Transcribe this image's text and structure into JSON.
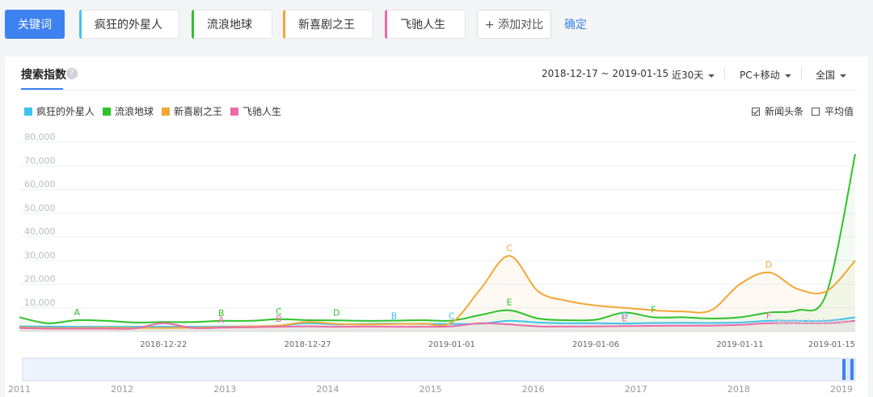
{
  "keywords": {
    "main_label": "关键词",
    "chips": [
      {
        "label": "疯狂的外星人",
        "color": "#3ec3f0"
      },
      {
        "label": "流浪地球",
        "color": "#2fc22b"
      },
      {
        "label": "新喜剧之王",
        "color": "#f3a736"
      },
      {
        "label": "飞驰人生",
        "color": "#ec6aa6"
      }
    ],
    "add_label": "+ 添加对比",
    "confirm_label": "确定"
  },
  "panel": {
    "tab_title": "搜索指数",
    "help_icon": "?",
    "date_range": "2018-12-17 ~ 2019-01-15",
    "period": "近30天",
    "device": "PC+移动",
    "region": "全国",
    "option_news": "新闻头条",
    "option_avg": "平均值",
    "watermark": "@index.baidu.com"
  },
  "chart_data": {
    "type": "line",
    "x": [
      "2018-12-17",
      "2018-12-18",
      "2018-12-19",
      "2018-12-20",
      "2018-12-21",
      "2018-12-22",
      "2018-12-23",
      "2018-12-24",
      "2018-12-25",
      "2018-12-26",
      "2018-12-27",
      "2018-12-28",
      "2018-12-29",
      "2018-12-30",
      "2018-12-31",
      "2019-01-01",
      "2019-01-02",
      "2019-01-03",
      "2019-01-04",
      "2019-01-05",
      "2019-01-06",
      "2019-01-07",
      "2019-01-08",
      "2019-01-09",
      "2019-01-10",
      "2019-01-11",
      "2019-01-12",
      "2019-01-13",
      "2019-01-14",
      "2019-01-15"
    ],
    "x_tick_labels": [
      "2018-12-22",
      "2018-12-27",
      "2019-01-01",
      "2019-01-06",
      "2019-01-11",
      "2019-01-15"
    ],
    "y_tick_labels": [
      "10,000",
      "20,000",
      "30,000",
      "40,000",
      "50,000",
      "60,000",
      "70,000",
      "80,000"
    ],
    "ylim": [
      0,
      80000
    ],
    "series": [
      {
        "name": "疯狂的外星人",
        "color": "#3ec3f0",
        "values": [
          2200,
          2100,
          2000,
          2000,
          2000,
          2000,
          2000,
          2100,
          2200,
          2500,
          3500,
          3000,
          3200,
          3300,
          3200,
          3200,
          3300,
          4500,
          3800,
          3500,
          3500,
          3400,
          3600,
          3700,
          3600,
          3800,
          4500,
          4500,
          4500,
          6000
        ]
      },
      {
        "name": "流浪地球",
        "color": "#2fc22b",
        "values": [
          6000,
          3500,
          4800,
          4500,
          3800,
          4000,
          4000,
          4500,
          4500,
          5200,
          4800,
          4700,
          4500,
          4600,
          4800,
          4600,
          7000,
          9000,
          5500,
          4800,
          5000,
          8000,
          6000,
          6000,
          5500,
          6000,
          8000,
          9000,
          16000,
          75000
        ]
      },
      {
        "name": "新喜剧之王",
        "color": "#f3a736",
        "values": [
          1800,
          1500,
          1500,
          1600,
          1500,
          1500,
          1600,
          1800,
          2200,
          2500,
          4000,
          3200,
          3000,
          3200,
          3300,
          3800,
          18000,
          32000,
          17000,
          13000,
          11000,
          10000,
          9000,
          8500,
          9000,
          20000,
          25000,
          18000,
          17000,
          30000
        ]
      },
      {
        "name": "飞驰人生",
        "color": "#ec6aa6",
        "values": [
          1500,
          1200,
          1200,
          1200,
          1300,
          3500,
          1500,
          1600,
          1800,
          2000,
          2200,
          2000,
          2100,
          2000,
          2000,
          2200,
          3500,
          3000,
          2200,
          2100,
          2200,
          2300,
          2400,
          2500,
          2500,
          2800,
          3500,
          3500,
          3500,
          4500
        ]
      }
    ],
    "annotations": [
      {
        "letter": "A",
        "date": "2018-12-19",
        "color": "#2fc22b"
      },
      {
        "letter": "B",
        "date": "2018-12-24",
        "color": "#2fc22b"
      },
      {
        "letter": "A",
        "date": "2018-12-24",
        "color": "#ec6aa6"
      },
      {
        "letter": "C",
        "date": "2018-12-26",
        "color": "#2fc22b"
      },
      {
        "letter": "B",
        "date": "2018-12-26",
        "color": "#ec6aa6"
      },
      {
        "letter": "D",
        "date": "2018-12-28",
        "color": "#2fc22b"
      },
      {
        "letter": "B",
        "date": "2018-12-30",
        "color": "#3ec3f0"
      },
      {
        "letter": "C",
        "date": "2019-01-01",
        "color": "#3ec3f0"
      },
      {
        "letter": "E",
        "date": "2019-01-03",
        "color": "#2fc22b"
      },
      {
        "letter": "C",
        "date": "2019-01-03",
        "color": "#f3a736"
      },
      {
        "letter": "D",
        "date": "2019-01-07",
        "color": "#3ec3f0"
      },
      {
        "letter": "E",
        "date": "2019-01-07",
        "color": "#ec6aa6"
      },
      {
        "letter": "F",
        "date": "2019-01-08",
        "color": "#2fc22b"
      },
      {
        "letter": "D",
        "date": "2019-01-12",
        "color": "#f3a736"
      },
      {
        "letter": "F",
        "date": "2019-01-12",
        "color": "#ec6aa6"
      }
    ],
    "overview_years": [
      "2011",
      "2012",
      "2013",
      "2014",
      "2015",
      "2016",
      "2017",
      "2018",
      "2019"
    ]
  }
}
